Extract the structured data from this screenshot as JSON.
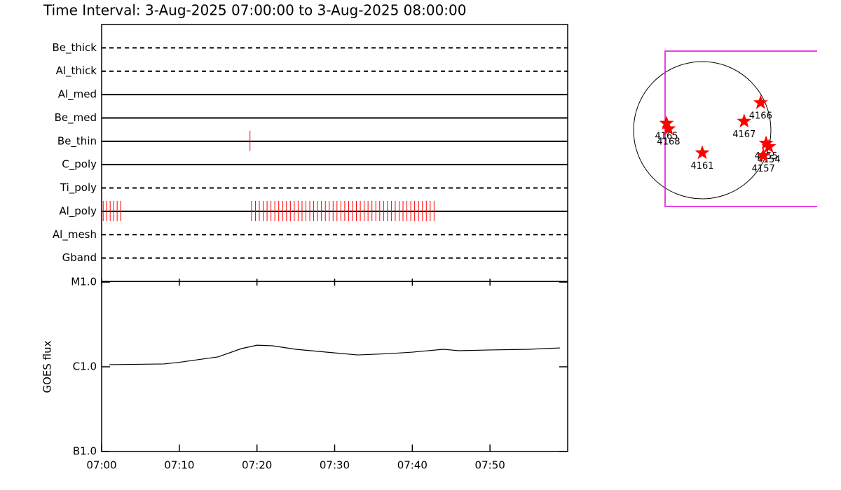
{
  "chart_data": [
    {
      "type": "timeline",
      "title": "Time Interval:  3-Aug-2025 07:00:00 to  3-Aug-2025 08:00:00",
      "xlim": [
        "07:00",
        "08:00"
      ],
      "mark_color": "#ff0000",
      "series": [
        {
          "name": "Be_thick",
          "style": "dashed",
          "times": []
        },
        {
          "name": "Al_thick",
          "style": "dashed",
          "times": []
        },
        {
          "name": "Al_med",
          "style": "solid",
          "times": []
        },
        {
          "name": "Be_med",
          "style": "solid",
          "times": []
        },
        {
          "name": "Be_thin",
          "style": "solid",
          "times": [
            "07:19:06"
          ]
        },
        {
          "name": "C_poly",
          "style": "solid",
          "times": []
        },
        {
          "name": "Ti_poly",
          "style": "dashed",
          "times": []
        },
        {
          "name": "Al_poly",
          "style": "solid",
          "times": [
            "07:00:12",
            "07:00:39",
            "07:01:06",
            "07:01:33",
            "07:02:00",
            "07:02:27",
            "07:19:18",
            "07:19:48",
            "07:20:18",
            "07:20:48",
            "07:21:18",
            "07:21:48",
            "07:22:18",
            "07:22:48",
            "07:23:18",
            "07:23:48",
            "07:24:18",
            "07:24:48",
            "07:25:18",
            "07:25:48",
            "07:26:18",
            "07:26:48",
            "07:27:18",
            "07:27:48",
            "07:28:18",
            "07:28:48",
            "07:29:18",
            "07:29:48",
            "07:30:18",
            "07:30:48",
            "07:31:18",
            "07:31:48",
            "07:32:18",
            "07:32:48",
            "07:33:18",
            "07:33:48",
            "07:34:18",
            "07:34:48",
            "07:35:18",
            "07:35:48",
            "07:36:18",
            "07:36:48",
            "07:37:18",
            "07:37:48",
            "07:38:18",
            "07:38:48",
            "07:39:18",
            "07:39:48",
            "07:40:18",
            "07:40:48",
            "07:41:18",
            "07:41:48",
            "07:42:18",
            "07:42:48"
          ]
        },
        {
          "name": "Al_mesh",
          "style": "dashed",
          "times": []
        },
        {
          "name": "Gband",
          "style": "dashed",
          "times": []
        }
      ]
    },
    {
      "type": "line",
      "y_label": "GOES flux",
      "log_scale": true,
      "color": "#000000",
      "xlim": [
        "07:00",
        "08:00"
      ],
      "xticks": [
        "07:00",
        "07:10",
        "07:20",
        "07:30",
        "07:40",
        "07:50"
      ],
      "ylim": [
        1e-07,
        1e-05
      ],
      "yticks": [
        {
          "value": 1e-07,
          "label": "B1.0"
        },
        {
          "value": 1e-06,
          "label": "C1.0"
        },
        {
          "value": 1e-05,
          "label": "M1.0"
        }
      ],
      "x": [
        "07:01",
        "07:08",
        "07:10",
        "07:15",
        "07:18",
        "07:20",
        "07:22",
        "07:25",
        "07:30",
        "07:33",
        "07:37",
        "07:40",
        "07:44",
        "07:46",
        "07:50",
        "07:55",
        "07:59"
      ],
      "values": [
        1.06e-06,
        1.08e-06,
        1.13e-06,
        1.31e-06,
        1.64e-06,
        1.8e-06,
        1.77e-06,
        1.61e-06,
        1.46e-06,
        1.38e-06,
        1.43e-06,
        1.49e-06,
        1.61e-06,
        1.55e-06,
        1.58e-06,
        1.61e-06,
        1.67e-06
      ]
    },
    {
      "type": "scatter",
      "color": "#ff0000",
      "xlim": [
        -1,
        1
      ],
      "ylim": [
        -1,
        1
      ],
      "points": [
        {
          "label": "4165",
          "x": -0.52,
          "y": 0.1
        },
        {
          "label": "4168",
          "x": -0.49,
          "y": 0.02
        },
        {
          "label": "4166",
          "x": 0.85,
          "y": 0.4
        },
        {
          "label": "4167",
          "x": 0.61,
          "y": 0.13
        },
        {
          "label": "4161",
          "x": 0.0,
          "y": -0.33
        },
        {
          "label": "4155",
          "x": 0.93,
          "y": -0.19
        },
        {
          "label": "4154",
          "x": 0.97,
          "y": -0.24
        },
        {
          "label": "4157",
          "x": 0.89,
          "y": -0.37
        }
      ]
    }
  ]
}
